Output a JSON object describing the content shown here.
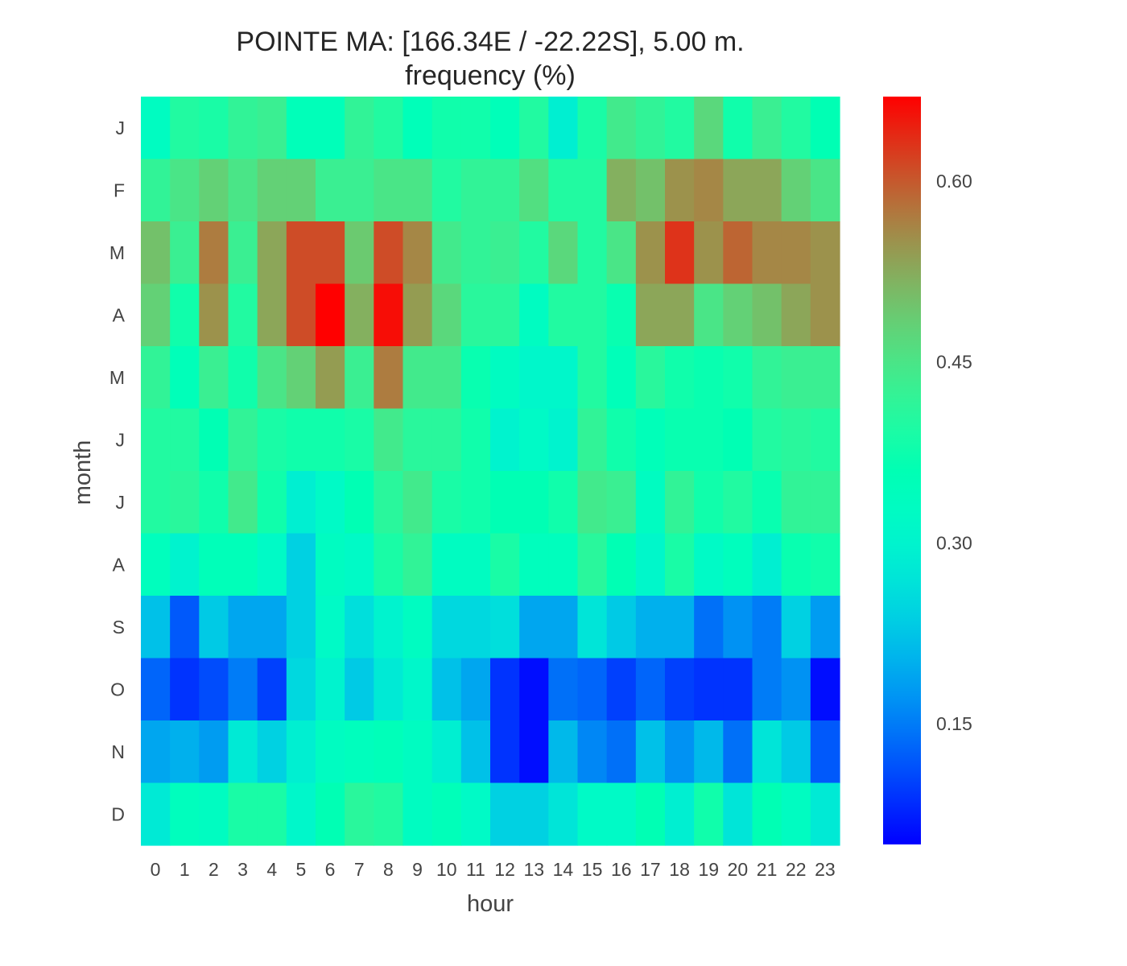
{
  "chart_data": {
    "type": "heatmap",
    "title": "POINTE MA: [166.34E / -22.22S], 5.00 m.",
    "subtitle": "frequency (%)",
    "xlabel": "hour",
    "ylabel": "month",
    "x_categories": [
      "0",
      "1",
      "2",
      "3",
      "4",
      "5",
      "6",
      "7",
      "8",
      "9",
      "10",
      "11",
      "12",
      "13",
      "14",
      "15",
      "16",
      "17",
      "18",
      "19",
      "20",
      "21",
      "22",
      "23"
    ],
    "y_categories": [
      "J",
      "F",
      "M",
      "A",
      "M",
      "J",
      "J",
      "A",
      "S",
      "O",
      "N",
      "D"
    ],
    "values": [
      [
        0.33,
        0.4,
        0.39,
        0.42,
        0.43,
        0.35,
        0.35,
        0.42,
        0.4,
        0.35,
        0.38,
        0.38,
        0.35,
        0.4,
        0.29,
        0.39,
        0.44,
        0.42,
        0.4,
        0.47,
        0.38,
        0.43,
        0.4,
        0.36
      ],
      [
        0.42,
        0.45,
        0.48,
        0.45,
        0.48,
        0.48,
        0.43,
        0.43,
        0.45,
        0.45,
        0.4,
        0.42,
        0.42,
        0.46,
        0.4,
        0.4,
        0.52,
        0.5,
        0.55,
        0.56,
        0.53,
        0.53,
        0.48,
        0.45
      ],
      [
        0.5,
        0.43,
        0.57,
        0.43,
        0.53,
        0.61,
        0.61,
        0.49,
        0.61,
        0.56,
        0.44,
        0.42,
        0.43,
        0.4,
        0.47,
        0.4,
        0.45,
        0.55,
        0.63,
        0.55,
        0.59,
        0.56,
        0.56,
        0.55
      ],
      [
        0.48,
        0.38,
        0.55,
        0.4,
        0.53,
        0.61,
        0.67,
        0.52,
        0.66,
        0.54,
        0.47,
        0.41,
        0.41,
        0.33,
        0.4,
        0.4,
        0.37,
        0.53,
        0.53,
        0.45,
        0.48,
        0.5,
        0.53,
        0.55
      ],
      [
        0.42,
        0.35,
        0.43,
        0.38,
        0.45,
        0.48,
        0.54,
        0.43,
        0.57,
        0.44,
        0.44,
        0.37,
        0.33,
        0.31,
        0.31,
        0.4,
        0.35,
        0.41,
        0.38,
        0.37,
        0.38,
        0.42,
        0.43,
        0.43
      ],
      [
        0.4,
        0.4,
        0.36,
        0.42,
        0.39,
        0.38,
        0.38,
        0.39,
        0.44,
        0.41,
        0.41,
        0.38,
        0.3,
        0.32,
        0.3,
        0.42,
        0.38,
        0.35,
        0.37,
        0.37,
        0.36,
        0.4,
        0.41,
        0.4
      ],
      [
        0.4,
        0.41,
        0.38,
        0.44,
        0.38,
        0.29,
        0.32,
        0.36,
        0.41,
        0.44,
        0.39,
        0.38,
        0.36,
        0.36,
        0.38,
        0.44,
        0.43,
        0.33,
        0.42,
        0.38,
        0.4,
        0.37,
        0.42,
        0.42
      ],
      [
        0.34,
        0.3,
        0.35,
        0.35,
        0.32,
        0.24,
        0.33,
        0.32,
        0.39,
        0.42,
        0.33,
        0.33,
        0.39,
        0.34,
        0.34,
        0.41,
        0.36,
        0.31,
        0.39,
        0.32,
        0.34,
        0.29,
        0.37,
        0.38
      ],
      [
        0.22,
        0.12,
        0.23,
        0.19,
        0.19,
        0.24,
        0.32,
        0.26,
        0.3,
        0.33,
        0.25,
        0.25,
        0.26,
        0.19,
        0.19,
        0.27,
        0.23,
        0.2,
        0.2,
        0.14,
        0.17,
        0.15,
        0.24,
        0.18
      ],
      [
        0.13,
        0.09,
        0.11,
        0.15,
        0.1,
        0.25,
        0.3,
        0.23,
        0.28,
        0.31,
        0.22,
        0.19,
        0.09,
        0.06,
        0.14,
        0.13,
        0.1,
        0.13,
        0.1,
        0.09,
        0.09,
        0.15,
        0.17,
        0.06
      ],
      [
        0.19,
        0.2,
        0.18,
        0.28,
        0.24,
        0.29,
        0.33,
        0.34,
        0.35,
        0.33,
        0.29,
        0.22,
        0.09,
        0.06,
        0.21,
        0.16,
        0.14,
        0.22,
        0.17,
        0.21,
        0.14,
        0.27,
        0.23,
        0.12
      ],
      [
        0.28,
        0.34,
        0.33,
        0.39,
        0.39,
        0.31,
        0.36,
        0.41,
        0.4,
        0.33,
        0.35,
        0.32,
        0.24,
        0.24,
        0.27,
        0.32,
        0.32,
        0.36,
        0.29,
        0.38,
        0.27,
        0.36,
        0.33,
        0.28
      ]
    ],
    "vmin": 0.05,
    "vmax": 0.67,
    "colormap": "rainbow",
    "colorbar_ticks": [
      0.15,
      0.3,
      0.45,
      0.6
    ],
    "colorbar_tick_labels": [
      "0.15",
      "0.30",
      "0.45",
      "0.60"
    ],
    "grid": false
  }
}
